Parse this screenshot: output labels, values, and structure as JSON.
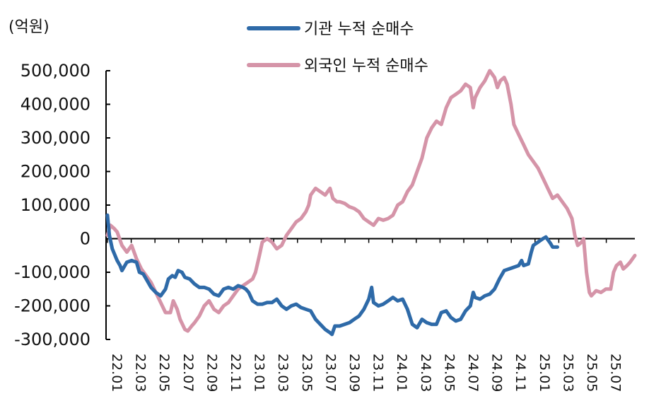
{
  "chart_data": {
    "type": "line",
    "unit_label": "(억원)",
    "ylim": [
      -300000,
      500000
    ],
    "y_ticks": [
      500000,
      400000,
      300000,
      200000,
      100000,
      0,
      -100000,
      -200000,
      -300000
    ],
    "y_tick_labels": [
      "500,000",
      "400,000",
      "300,000",
      "200,000",
      "100,000",
      "0",
      "-100,000",
      "-200,000",
      "-300,000"
    ],
    "x_tick_labels": [
      "22.01",
      "22.03",
      "22.05",
      "22.07",
      "22.09",
      "22.11",
      "23.01",
      "23.03",
      "23.05",
      "23.07",
      "23.09",
      "23.11",
      "24.01",
      "24.03",
      "24.05",
      "24.07",
      "24.09",
      "24.11",
      "25.01",
      "25.03",
      "25.05",
      "25.07"
    ],
    "x_range_months": [
      0,
      44.5
    ],
    "grid": false,
    "legend_position": "top-center",
    "series": [
      {
        "name": "기관 누적 순매수",
        "color": "#2e6aa8",
        "points": [
          [
            0,
            70000
          ],
          [
            0.2,
            10000
          ],
          [
            0.5,
            -30000
          ],
          [
            1,
            -65000
          ],
          [
            1.3,
            -80000
          ],
          [
            1.5,
            -95000
          ],
          [
            2,
            -70000
          ],
          [
            2.5,
            -65000
          ],
          [
            3,
            -70000
          ],
          [
            3.3,
            -100000
          ],
          [
            3.7,
            -105000
          ],
          [
            4,
            -120000
          ],
          [
            4.5,
            -145000
          ],
          [
            5,
            -160000
          ],
          [
            5.5,
            -170000
          ],
          [
            6,
            -150000
          ],
          [
            6.3,
            -120000
          ],
          [
            6.7,
            -110000
          ],
          [
            7,
            -115000
          ],
          [
            7.3,
            -95000
          ],
          [
            7.7,
            -100000
          ],
          [
            8,
            -115000
          ],
          [
            8.5,
            -120000
          ],
          [
            9,
            -135000
          ],
          [
            9.5,
            -145000
          ],
          [
            10,
            -145000
          ],
          [
            10.5,
            -150000
          ],
          [
            11,
            -165000
          ],
          [
            11.5,
            -170000
          ],
          [
            12,
            -150000
          ],
          [
            12.5,
            -145000
          ],
          [
            13,
            -150000
          ],
          [
            13.5,
            -140000
          ],
          [
            14,
            -145000
          ],
          [
            14.3,
            -150000
          ],
          [
            14.6,
            -160000
          ],
          [
            15,
            -185000
          ],
          [
            15.5,
            -195000
          ],
          [
            16,
            -195000
          ],
          [
            16.5,
            -190000
          ],
          [
            17,
            -190000
          ],
          [
            17.5,
            -180000
          ],
          [
            18,
            -200000
          ],
          [
            18.5,
            -210000
          ],
          [
            19,
            -200000
          ],
          [
            19.5,
            -195000
          ],
          [
            20,
            -205000
          ],
          [
            20.5,
            -210000
          ],
          [
            21,
            -215000
          ],
          [
            21.5,
            -240000
          ],
          [
            22,
            -255000
          ],
          [
            22.5,
            -270000
          ],
          [
            23,
            -280000
          ],
          [
            23.2,
            -285000
          ],
          [
            23.5,
            -260000
          ],
          [
            24,
            -260000
          ],
          [
            24.5,
            -255000
          ],
          [
            25,
            -250000
          ],
          [
            25.5,
            -240000
          ],
          [
            26,
            -230000
          ],
          [
            26.5,
            -210000
          ],
          [
            27,
            -180000
          ],
          [
            27.3,
            -145000
          ],
          [
            27.5,
            -190000
          ],
          [
            28,
            -200000
          ],
          [
            28.5,
            -195000
          ],
          [
            29,
            -185000
          ],
          [
            29.5,
            -175000
          ],
          [
            30,
            -185000
          ],
          [
            30.5,
            -180000
          ],
          [
            31,
            -210000
          ],
          [
            31.5,
            -255000
          ],
          [
            32,
            -265000
          ],
          [
            32.5,
            -240000
          ],
          [
            33,
            -250000
          ],
          [
            33.5,
            -255000
          ],
          [
            34,
            -255000
          ],
          [
            34.5,
            -220000
          ],
          [
            35,
            -215000
          ],
          [
            35.5,
            -235000
          ],
          [
            36,
            -245000
          ],
          [
            36.5,
            -240000
          ],
          [
            37,
            -215000
          ],
          [
            37.5,
            -200000
          ],
          [
            37.8,
            -160000
          ],
          [
            38,
            -175000
          ],
          [
            38.5,
            -180000
          ],
          [
            39,
            -170000
          ],
          [
            39.5,
            -165000
          ],
          [
            40,
            -150000
          ],
          [
            40.5,
            -120000
          ],
          [
            41,
            -95000
          ],
          [
            41.5,
            -90000
          ],
          [
            42,
            -85000
          ],
          [
            42.5,
            -80000
          ],
          [
            42.8,
            -65000
          ],
          [
            43,
            -80000
          ],
          [
            43.5,
            -75000
          ],
          [
            43.8,
            -40000
          ],
          [
            44,
            -20000
          ],
          [
            44.5,
            -10000
          ],
          [
            45,
            0
          ],
          [
            45.3,
            5000
          ],
          [
            45.8,
            -15000
          ],
          [
            46,
            -25000
          ],
          [
            46.5,
            -25000
          ]
        ]
      },
      {
        "name": "외국인 누적 순매수",
        "color": "#d594a8",
        "points": [
          [
            0,
            10000
          ],
          [
            0.3,
            40000
          ],
          [
            0.7,
            30000
          ],
          [
            1,
            20000
          ],
          [
            1.5,
            -20000
          ],
          [
            2,
            -40000
          ],
          [
            2.5,
            -20000
          ],
          [
            3,
            -60000
          ],
          [
            3.5,
            -90000
          ],
          [
            4,
            -110000
          ],
          [
            4.5,
            -130000
          ],
          [
            5,
            -160000
          ],
          [
            5.5,
            -190000
          ],
          [
            6,
            -220000
          ],
          [
            6.5,
            -220000
          ],
          [
            6.8,
            -185000
          ],
          [
            7.2,
            -210000
          ],
          [
            7.5,
            -240000
          ],
          [
            8,
            -270000
          ],
          [
            8.3,
            -275000
          ],
          [
            8.7,
            -260000
          ],
          [
            9,
            -250000
          ],
          [
            9.5,
            -230000
          ],
          [
            10,
            -200000
          ],
          [
            10.5,
            -185000
          ],
          [
            11,
            -210000
          ],
          [
            11.5,
            -220000
          ],
          [
            12,
            -200000
          ],
          [
            12.5,
            -190000
          ],
          [
            13,
            -170000
          ],
          [
            13.5,
            -150000
          ],
          [
            14,
            -140000
          ],
          [
            14.5,
            -130000
          ],
          [
            15,
            -120000
          ],
          [
            15.3,
            -100000
          ],
          [
            15.7,
            -50000
          ],
          [
            16,
            -10000
          ],
          [
            16.5,
            0
          ],
          [
            17,
            -10000
          ],
          [
            17.5,
            -30000
          ],
          [
            18,
            -20000
          ],
          [
            18.5,
            10000
          ],
          [
            19,
            30000
          ],
          [
            19.5,
            50000
          ],
          [
            20,
            60000
          ],
          [
            20.5,
            80000
          ],
          [
            20.8,
            100000
          ],
          [
            21,
            130000
          ],
          [
            21.5,
            150000
          ],
          [
            22,
            140000
          ],
          [
            22.5,
            130000
          ],
          [
            23,
            150000
          ],
          [
            23.3,
            120000
          ],
          [
            23.7,
            110000
          ],
          [
            24,
            110000
          ],
          [
            24.5,
            105000
          ],
          [
            25,
            95000
          ],
          [
            25.5,
            90000
          ],
          [
            26,
            80000
          ],
          [
            26.5,
            60000
          ],
          [
            27,
            50000
          ],
          [
            27.5,
            40000
          ],
          [
            28,
            60000
          ],
          [
            28.5,
            55000
          ],
          [
            29,
            60000
          ],
          [
            29.5,
            70000
          ],
          [
            30,
            100000
          ],
          [
            30.5,
            110000
          ],
          [
            31,
            140000
          ],
          [
            31.5,
            160000
          ],
          [
            32,
            200000
          ],
          [
            32.5,
            240000
          ],
          [
            33,
            300000
          ],
          [
            33.5,
            330000
          ],
          [
            34,
            350000
          ],
          [
            34.5,
            340000
          ],
          [
            35,
            390000
          ],
          [
            35.5,
            420000
          ],
          [
            36,
            430000
          ],
          [
            36.5,
            440000
          ],
          [
            37,
            460000
          ],
          [
            37.5,
            450000
          ],
          [
            37.8,
            390000
          ],
          [
            38,
            420000
          ],
          [
            38.5,
            450000
          ],
          [
            39,
            470000
          ],
          [
            39.5,
            500000
          ],
          [
            40,
            480000
          ],
          [
            40.3,
            450000
          ],
          [
            40.6,
            470000
          ],
          [
            41,
            480000
          ],
          [
            41.3,
            460000
          ],
          [
            41.7,
            400000
          ],
          [
            42,
            340000
          ],
          [
            42.5,
            310000
          ],
          [
            43,
            280000
          ],
          [
            43.5,
            250000
          ],
          [
            44,
            230000
          ],
          [
            44.5,
            210000
          ],
          [
            45,
            180000
          ],
          [
            45.5,
            150000
          ],
          [
            46,
            120000
          ],
          [
            46.5,
            130000
          ],
          [
            47,
            110000
          ],
          [
            47.5,
            90000
          ],
          [
            48,
            60000
          ],
          [
            48.3,
            10000
          ],
          [
            48.6,
            -20000
          ],
          [
            49,
            -10000
          ],
          [
            49.2,
            0
          ],
          [
            49.5,
            -100000
          ],
          [
            49.8,
            -160000
          ],
          [
            50,
            -170000
          ],
          [
            50.5,
            -155000
          ],
          [
            51,
            -160000
          ],
          [
            51.5,
            -150000
          ],
          [
            52,
            -150000
          ],
          [
            52.3,
            -100000
          ],
          [
            52.6,
            -80000
          ],
          [
            53,
            -70000
          ],
          [
            53.3,
            -90000
          ],
          [
            53.7,
            -80000
          ],
          [
            54,
            -70000
          ],
          [
            54.5,
            -50000
          ]
        ]
      }
    ]
  }
}
